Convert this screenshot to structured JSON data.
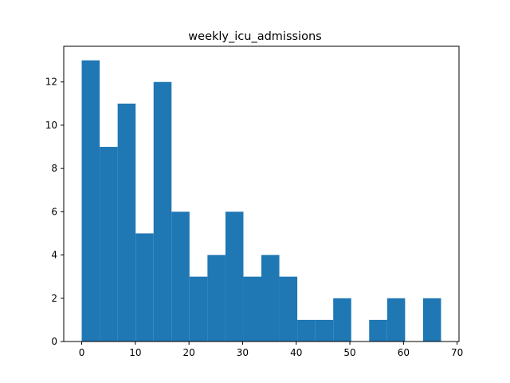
{
  "chart_data": {
    "type": "bar",
    "title": "weekly_icu_admissions",
    "xlabel": "",
    "ylabel": "",
    "bin_width": 3.35,
    "x_start": 0,
    "bins": [
      {
        "x0": 0.0,
        "x1": 3.35,
        "count": 13
      },
      {
        "x0": 3.35,
        "x1": 6.7,
        "count": 9
      },
      {
        "x0": 6.7,
        "x1": 10.05,
        "count": 11
      },
      {
        "x0": 10.05,
        "x1": 13.4,
        "count": 5
      },
      {
        "x0": 13.4,
        "x1": 16.75,
        "count": 12
      },
      {
        "x0": 16.75,
        "x1": 20.1,
        "count": 6
      },
      {
        "x0": 20.1,
        "x1": 23.45,
        "count": 3
      },
      {
        "x0": 23.45,
        "x1": 26.8,
        "count": 4
      },
      {
        "x0": 26.8,
        "x1": 30.15,
        "count": 6
      },
      {
        "x0": 30.15,
        "x1": 33.5,
        "count": 3
      },
      {
        "x0": 33.5,
        "x1": 36.85,
        "count": 4
      },
      {
        "x0": 36.85,
        "x1": 40.2,
        "count": 3
      },
      {
        "x0": 40.2,
        "x1": 43.55,
        "count": 1
      },
      {
        "x0": 43.55,
        "x1": 46.9,
        "count": 1
      },
      {
        "x0": 46.9,
        "x1": 50.25,
        "count": 2
      },
      {
        "x0": 50.25,
        "x1": 53.6,
        "count": 0
      },
      {
        "x0": 53.6,
        "x1": 56.95,
        "count": 1
      },
      {
        "x0": 56.95,
        "x1": 60.3,
        "count": 2
      },
      {
        "x0": 60.3,
        "x1": 63.65,
        "count": 0
      },
      {
        "x0": 63.65,
        "x1": 67.0,
        "count": 2
      }
    ],
    "xlim": [
      -3.35,
      70.35
    ],
    "ylim": [
      0,
      13.65
    ],
    "xticks": [
      0,
      10,
      20,
      30,
      40,
      50,
      60,
      70
    ],
    "yticks": [
      0,
      2,
      4,
      6,
      8,
      10,
      12
    ],
    "bar_color": "#1f77b4",
    "grid": false,
    "legend": "none"
  }
}
